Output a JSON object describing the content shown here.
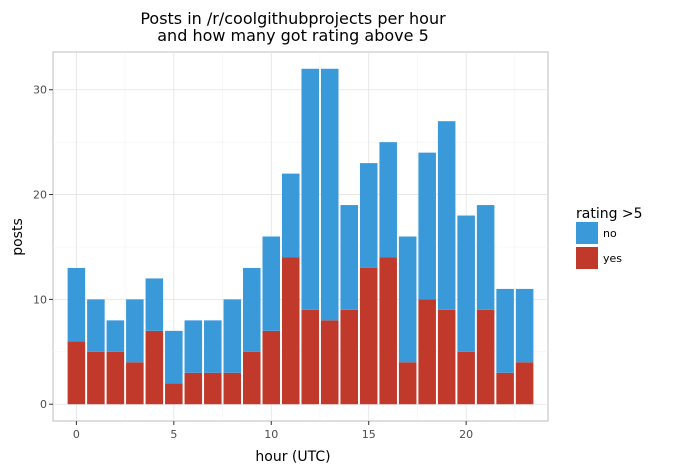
{
  "chart_data": {
    "type": "bar",
    "stacked": true,
    "title_line1": "Posts in /r/coolgithubprojects per hour",
    "title_line2": "and how many got rating above 5",
    "xlabel": "hour (UTC)",
    "ylabel": "posts",
    "xlim": [
      -1.2,
      24.2
    ],
    "ylim": [
      -1.6,
      33.6
    ],
    "x_ticks": [
      "0",
      "5",
      "10",
      "15",
      "20"
    ],
    "y_ticks": [
      "0",
      "10",
      "20",
      "30"
    ],
    "x_tick_values": [
      0,
      5,
      10,
      15,
      20
    ],
    "y_tick_values": [
      0,
      10,
      20,
      30
    ],
    "grid": true,
    "legend_position": "right",
    "categories": [
      0,
      1,
      2,
      3,
      4,
      5,
      6,
      7,
      8,
      9,
      10,
      11,
      12,
      13,
      14,
      15,
      16,
      17,
      18,
      19,
      20,
      21,
      22,
      23
    ],
    "series": [
      {
        "name": "yes",
        "color": "#c0392b",
        "values": [
          6,
          5,
          5,
          4,
          7,
          2,
          3,
          3,
          3,
          5,
          7,
          14,
          9,
          8,
          9,
          13,
          14,
          4,
          10,
          9,
          5,
          9,
          3,
          4
        ]
      },
      {
        "name": "no",
        "color": "#3a9ad9",
        "values": [
          7,
          5,
          3,
          6,
          5,
          5,
          5,
          5,
          7,
          8,
          9,
          8,
          23,
          24,
          10,
          10,
          11,
          12,
          14,
          18,
          13,
          10,
          8,
          7
        ]
      }
    ],
    "legend": {
      "title": "rating >5",
      "items": [
        {
          "label": "no",
          "color": "#3a9ad9"
        },
        {
          "label": "yes",
          "color": "#c0392b"
        }
      ]
    }
  }
}
